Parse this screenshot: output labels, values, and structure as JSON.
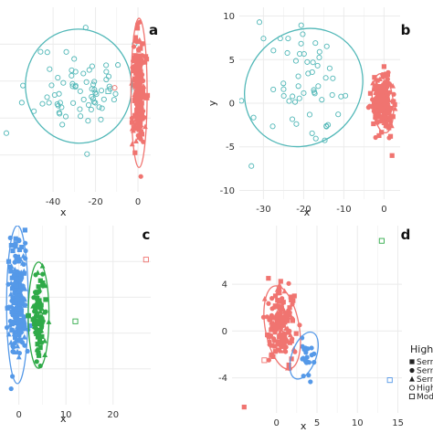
{
  "colors": {
    "red": "#f07470",
    "cyan": "#52b8b8",
    "blue": "#5599e8",
    "green": "#2faa48",
    "grid": "#ebebeb"
  },
  "legend": {
    "title": "High",
    "entries": [
      {
        "label": "Serra",
        "shape": "square"
      },
      {
        "label": "Serra",
        "shape": "circle"
      },
      {
        "label": "Serra",
        "shape": "triangle"
      },
      {
        "label": "Highl",
        "shape": "open-circle"
      },
      {
        "label": "Mode",
        "shape": "open-square"
      }
    ]
  },
  "chart_data": [
    {
      "type": "scatter",
      "panel_label": "a",
      "xlabel": "x",
      "ylabel": "",
      "xlim": [
        -65,
        6
      ],
      "ylim": [
        -12,
        10
      ],
      "xticks": [
        -40,
        -20,
        0
      ],
      "xtick_labels": [
        "-40",
        "-20",
        "0"
      ],
      "yticks": [],
      "grid": true,
      "clusters": [
        {
          "color": "cyan",
          "shape": "open-circle",
          "n": 70,
          "center": [
            -27,
            0.5
          ],
          "spread": [
            11,
            2.6
          ],
          "seed": 11
        },
        {
          "color": "red",
          "shape": "mixed",
          "n": 260,
          "center": [
            0.5,
            -0.3
          ],
          "spread": [
            1.3,
            3.2
          ],
          "seed": 12
        }
      ],
      "outliers": [
        {
          "x": -62,
          "y": -5,
          "color": "cyan",
          "shape": "open-circle"
        },
        {
          "x": -24,
          "y": -7.5,
          "color": "cyan",
          "shape": "open-circle"
        },
        {
          "x": -11,
          "y": 0.4,
          "color": "red",
          "shape": "open-circle"
        },
        {
          "x": -14,
          "y": 0,
          "color": "cyan",
          "shape": "open-square"
        }
      ],
      "ellipses": [
        {
          "color": "cyan",
          "cx": -28,
          "cy": 0.6,
          "rx": 25,
          "ry": 6.8,
          "rot": -5
        },
        {
          "color": "red",
          "cx": 0.5,
          "cy": -0.2,
          "rx": 3.8,
          "ry": 8.9,
          "rot": 0
        }
      ]
    },
    {
      "type": "scatter",
      "panel_label": "b",
      "xlabel": "x",
      "ylabel": "y",
      "xlim": [
        -36,
        4
      ],
      "ylim": [
        -11,
        11
      ],
      "xticks": [
        -30,
        -20,
        -10,
        0
      ],
      "xtick_labels": [
        "-30",
        "-20",
        "-10",
        "0"
      ],
      "yticks": [
        10,
        5,
        0,
        -5,
        -10
      ],
      "ytick_labels": [
        "10",
        "5",
        "0",
        "-5",
        "-10"
      ],
      "grid": true,
      "clusters": [
        {
          "color": "cyan",
          "shape": "open-circle",
          "n": 55,
          "center": [
            -18.5,
            1.5
          ],
          "spread": [
            5.5,
            3.4
          ],
          "seed": 21
        },
        {
          "color": "red",
          "shape": "mixed",
          "n": 220,
          "center": [
            -0.3,
            0
          ],
          "spread": [
            1.2,
            1.4
          ],
          "seed": 22
        }
      ],
      "outliers": [
        {
          "x": -31,
          "y": 9.3,
          "color": "cyan",
          "shape": "open-circle"
        },
        {
          "x": 0,
          "y": 4.2,
          "color": "red",
          "shape": "square"
        },
        {
          "x": 2,
          "y": -6,
          "color": "red",
          "shape": "square"
        },
        {
          "x": -33,
          "y": -7.2,
          "color": "cyan",
          "shape": "open-circle"
        }
      ],
      "ellipses": [
        {
          "color": "cyan",
          "cx": -20,
          "cy": 1.8,
          "rx": 15.5,
          "ry": 6.4,
          "rot": -45
        },
        {
          "color": "red",
          "cx": -0.3,
          "cy": 0,
          "rx": 2.6,
          "ry": 3.4,
          "rot": -5
        }
      ]
    },
    {
      "type": "scatter",
      "panel_label": "c",
      "xlabel": "x",
      "ylabel": "",
      "xlim": [
        -4,
        28
      ],
      "ylim": [
        -18,
        11
      ],
      "xticks": [
        0,
        10,
        20
      ],
      "xtick_labels": [
        "0",
        "10",
        "20"
      ],
      "yticks": [],
      "grid": true,
      "clusters": [
        {
          "color": "blue",
          "shape": "mixed",
          "n": 230,
          "center": [
            -0.3,
            -1.5
          ],
          "spread": [
            1.0,
            4.8
          ],
          "seed": 31
        },
        {
          "color": "green",
          "shape": "mixed",
          "n": 95,
          "center": [
            4.2,
            -3.5
          ],
          "spread": [
            0.8,
            3.4
          ],
          "seed": 32
        }
      ],
      "outliers": [
        {
          "x": 27,
          "y": 5.5,
          "color": "red",
          "shape": "open-square"
        },
        {
          "x": 12,
          "y": -4.5,
          "color": "green",
          "shape": "open-square"
        },
        {
          "x": 0,
          "y": 8.7,
          "color": "blue",
          "shape": "circle"
        }
      ],
      "ellipses": [
        {
          "color": "blue",
          "cx": -0.3,
          "cy": -1.8,
          "rx": 2.3,
          "ry": 12.8,
          "rot": 0
        },
        {
          "color": "green",
          "cx": 4.2,
          "cy": -3.5,
          "rx": 2.2,
          "ry": 8.6,
          "rot": 0
        }
      ]
    },
    {
      "type": "scatter",
      "panel_label": "d",
      "xlabel": "x",
      "ylabel": "",
      "xlim": [
        -5.5,
        15.5
      ],
      "ylim": [
        -7,
        9
      ],
      "xticks": [
        0,
        5,
        10,
        15
      ],
      "xtick_labels": [
        "0",
        "5",
        "10",
        "15"
      ],
      "yticks": [
        4,
        0,
        -4
      ],
      "ytick_labels": [
        "4",
        "0",
        "-4"
      ],
      "grid": true,
      "clusters": [
        {
          "color": "red",
          "shape": "mixed",
          "n": 170,
          "center": [
            0.5,
            0.6
          ],
          "spread": [
            0.9,
            1.5
          ],
          "seed": 41
        },
        {
          "color": "blue",
          "shape": "circle",
          "n": 22,
          "center": [
            3.5,
            -2.2
          ],
          "spread": [
            0.6,
            0.8
          ],
          "seed": 42
        }
      ],
      "outliers": [
        {
          "x": 13,
          "y": 7.7,
          "color": "green",
          "shape": "open-square"
        },
        {
          "x": 14,
          "y": -4.2,
          "color": "blue",
          "shape": "open-square"
        },
        {
          "x": -4,
          "y": -6.5,
          "color": "red",
          "shape": "square"
        },
        {
          "x": -1.5,
          "y": -2.5,
          "color": "red",
          "shape": "open-square"
        },
        {
          "x": -1,
          "y": 4.5,
          "color": "red",
          "shape": "square"
        }
      ],
      "ellipses": [
        {
          "color": "red",
          "cx": 0.7,
          "cy": 0.3,
          "rx": 2.1,
          "ry": 3.6,
          "rot": -10
        },
        {
          "color": "blue",
          "cx": 3.4,
          "cy": -2.1,
          "rx": 1.5,
          "ry": 2.1,
          "rot": 20
        }
      ]
    }
  ]
}
